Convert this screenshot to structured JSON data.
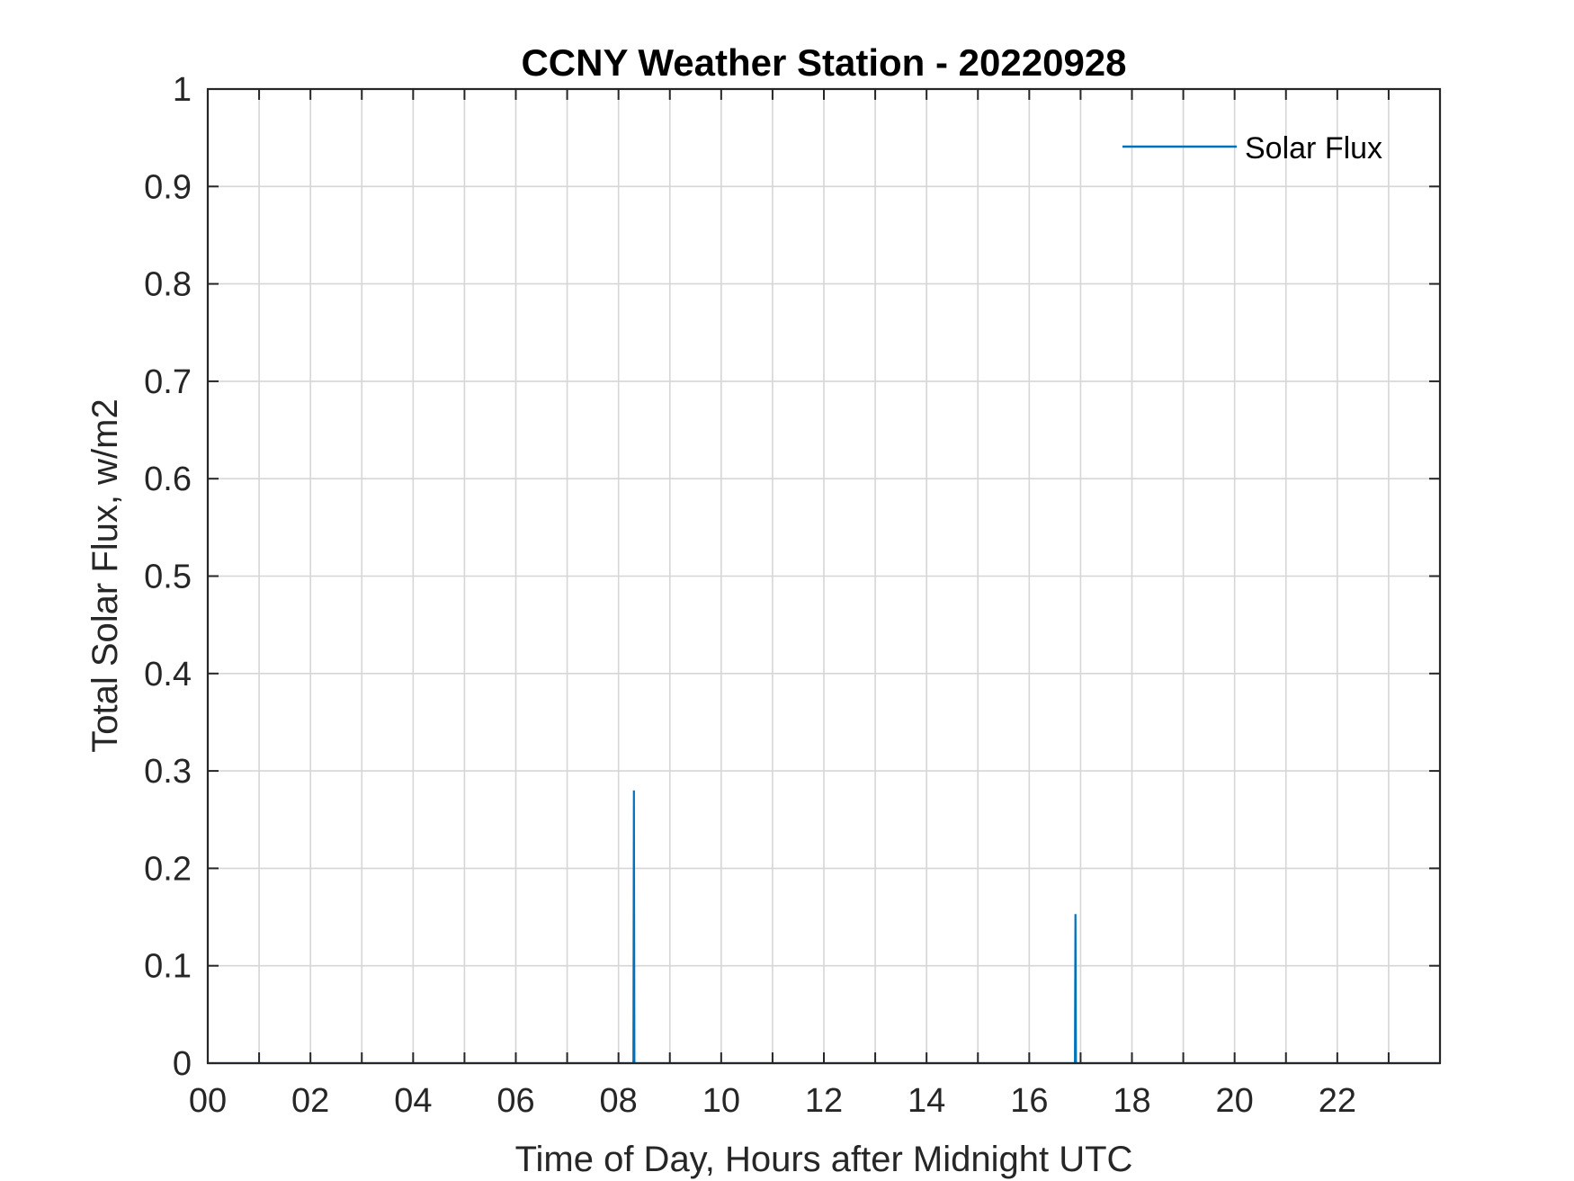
{
  "chart_data": {
    "type": "line",
    "title": "CCNY Weather Station - 20220928",
    "xlabel": "Time of Day, Hours after Midnight UTC",
    "ylabel": "Total Solar Flux, w/m2",
    "xlim": [
      0,
      24
    ],
    "ylim": [
      0,
      1
    ],
    "x_ticks": [
      0,
      2,
      4,
      6,
      8,
      10,
      12,
      14,
      16,
      18,
      20,
      22
    ],
    "x_tick_labels": [
      "00",
      "02",
      "04",
      "06",
      "08",
      "10",
      "12",
      "14",
      "16",
      "18",
      "20",
      "22"
    ],
    "x_minor_ticks": [
      1,
      3,
      5,
      7,
      9,
      11,
      13,
      15,
      17,
      19,
      21,
      23
    ],
    "y_ticks": [
      0,
      0.1,
      0.2,
      0.3,
      0.4,
      0.5,
      0.6,
      0.7,
      0.8,
      0.9,
      1
    ],
    "y_tick_labels": [
      "0",
      "0.1",
      "0.2",
      "0.3",
      "0.4",
      "0.5",
      "0.6",
      "0.7",
      "0.8",
      "0.9",
      "1"
    ],
    "grid": true,
    "legend_position": "top-right",
    "series": [
      {
        "name": "Solar Flux",
        "color": "#0072BD",
        "x": [
          0,
          8.29,
          8.3,
          8.31,
          16.89,
          16.9,
          16.91,
          24
        ],
        "y": [
          0,
          0,
          0.28,
          0,
          0,
          0.153,
          0,
          0
        ]
      }
    ]
  }
}
